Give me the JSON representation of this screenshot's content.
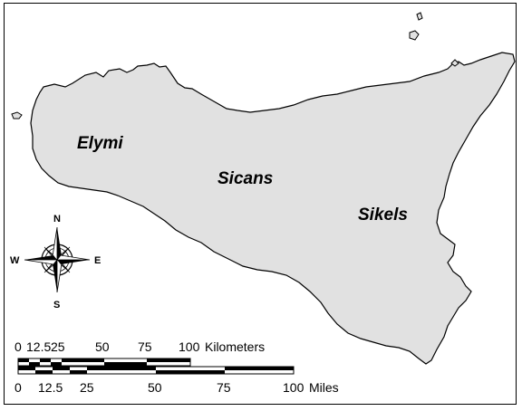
{
  "map": {
    "land_fill": "#e1e1e1",
    "outline_color": "#000000",
    "regions": [
      {
        "id": "elymi",
        "label": "Elymi"
      },
      {
        "id": "sicans",
        "label": "Sicans"
      },
      {
        "id": "sikels",
        "label": "Sikels"
      }
    ]
  },
  "compass": {
    "icon": "compass-rose-icon",
    "north": "N",
    "south": "S",
    "east": "E",
    "west": "W"
  },
  "scale_bars": {
    "kilometers": {
      "ticks": [
        "0",
        "12.5",
        "25",
        "50",
        "75",
        "100"
      ],
      "unit": "Kilometers"
    },
    "miles": {
      "ticks": [
        "0",
        "12.5",
        "25",
        "50",
        "75",
        "100"
      ],
      "unit": "Miles"
    }
  }
}
